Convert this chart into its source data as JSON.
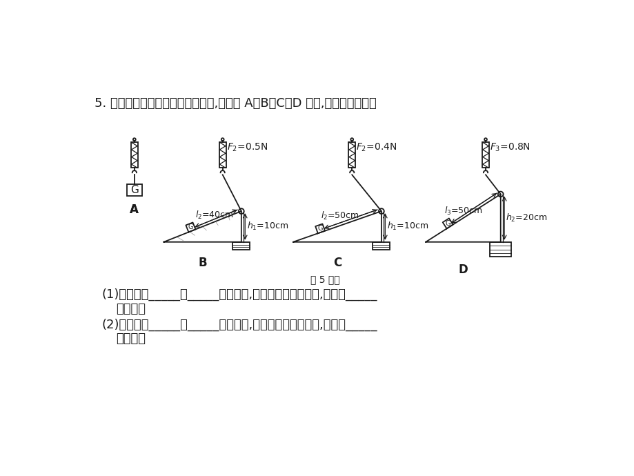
{
  "bg_color": "#ffffff",
  "title_text": "5. 小明同学设计了如图所示的实验,按步骤 A、B、C、D 进行,回答下列问题：",
  "caption": "第 5 题图",
  "q1": "(1)分析步骤_____和_____可以看出,在斜面的长度相等时,斜面越_____",
  "q1b": "越省力。",
  "q2": "(2)分析步骤_____和_____可以看出,在斜面的高度相同时,斜面越_____",
  "q2b": "越省力。",
  "F2_B": "$F_2$=0.5N",
  "F2_C": "$F_2$=0.4N",
  "F3_D": "$F_3$=0.8N",
  "l2_B": "$l_2$=40cm",
  "l2_C": "$l_2$=50cm",
  "l3_D": "$l_3$=50cm",
  "h1_B": "$h_1$=10cm",
  "h1_C": "$h_1$=10cm",
  "h2_D": "$h_2$=20cm",
  "text_color": "#1a1a1a",
  "line_color": "#1a1a1a"
}
